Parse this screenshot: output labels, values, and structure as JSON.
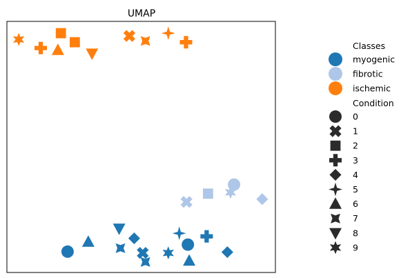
{
  "chart_data": {
    "type": "scatter",
    "title": "UMAP",
    "xlabel": "",
    "ylabel": "",
    "xlim": [
      0,
      100
    ],
    "ylim": [
      0,
      100
    ],
    "grid": false,
    "ticks": false,
    "legend_placement": "right",
    "hue_legend": {
      "title": "Classes",
      "entries": [
        {
          "name": "myogenic",
          "color": "#1f77b4"
        },
        {
          "name": "fibrotic",
          "color": "#aec7e8"
        },
        {
          "name": "ischemic",
          "color": "#ff7f0e"
        }
      ]
    },
    "style_legend": {
      "title": "Condition",
      "entries": [
        {
          "name": "0",
          "marker": "circle"
        },
        {
          "name": "1",
          "marker": "x-thick"
        },
        {
          "name": "2",
          "marker": "square"
        },
        {
          "name": "3",
          "marker": "plus-thick"
        },
        {
          "name": "4",
          "marker": "diamond"
        },
        {
          "name": "5",
          "marker": "star-4"
        },
        {
          "name": "6",
          "marker": "triangle-up"
        },
        {
          "name": "7",
          "marker": "star-4-x"
        },
        {
          "name": "8",
          "marker": "triangle-down"
        },
        {
          "name": "9",
          "marker": "star-6"
        }
      ]
    },
    "points": [
      {
        "class": "ischemic",
        "condition": "9",
        "x": 4.4,
        "y": 92.8
      },
      {
        "class": "ischemic",
        "condition": "3",
        "x": 12.6,
        "y": 89.4
      },
      {
        "class": "ischemic",
        "condition": "2",
        "x": 20.1,
        "y": 95.3
      },
      {
        "class": "ischemic",
        "condition": "6",
        "x": 19.0,
        "y": 88.6
      },
      {
        "class": "ischemic",
        "condition": "2",
        "x": 25.3,
        "y": 91.7
      },
      {
        "class": "ischemic",
        "condition": "8",
        "x": 31.7,
        "y": 87.2
      },
      {
        "class": "ischemic",
        "condition": "1",
        "x": 45.6,
        "y": 94.2
      },
      {
        "class": "ischemic",
        "condition": "7",
        "x": 51.6,
        "y": 92.2
      },
      {
        "class": "ischemic",
        "condition": "5",
        "x": 60.1,
        "y": 95.3
      },
      {
        "class": "ischemic",
        "condition": "3",
        "x": 66.7,
        "y": 91.7
      },
      {
        "class": "fibrotic",
        "condition": "1",
        "x": 66.9,
        "y": 28.1
      },
      {
        "class": "fibrotic",
        "condition": "2",
        "x": 74.9,
        "y": 31.4
      },
      {
        "class": "fibrotic",
        "condition": "9",
        "x": 83.3,
        "y": 31.9
      },
      {
        "class": "fibrotic",
        "condition": "0",
        "x": 84.6,
        "y": 35.0
      },
      {
        "class": "fibrotic",
        "condition": "4",
        "x": 95.1,
        "y": 29.2
      },
      {
        "class": "myogenic",
        "condition": "0",
        "x": 22.6,
        "y": 8.3
      },
      {
        "class": "myogenic",
        "condition": "6",
        "x": 30.3,
        "y": 12.2
      },
      {
        "class": "myogenic",
        "condition": "8",
        "x": 41.8,
        "y": 17.5
      },
      {
        "class": "myogenic",
        "condition": "7",
        "x": 42.3,
        "y": 9.7
      },
      {
        "class": "myogenic",
        "condition": "4",
        "x": 47.4,
        "y": 13.6
      },
      {
        "class": "myogenic",
        "condition": "1",
        "x": 50.6,
        "y": 7.8
      },
      {
        "class": "myogenic",
        "condition": "7",
        "x": 51.6,
        "y": 4.2
      },
      {
        "class": "myogenic",
        "condition": "9",
        "x": 60.1,
        "y": 7.8
      },
      {
        "class": "myogenic",
        "condition": "5",
        "x": 64.2,
        "y": 15.6
      },
      {
        "class": "myogenic",
        "condition": "0",
        "x": 67.4,
        "y": 11.1
      },
      {
        "class": "myogenic",
        "condition": "6",
        "x": 67.9,
        "y": 4.7
      },
      {
        "class": "myogenic",
        "condition": "3",
        "x": 74.4,
        "y": 14.4
      },
      {
        "class": "myogenic",
        "condition": "4",
        "x": 82.1,
        "y": 8.1
      }
    ]
  }
}
